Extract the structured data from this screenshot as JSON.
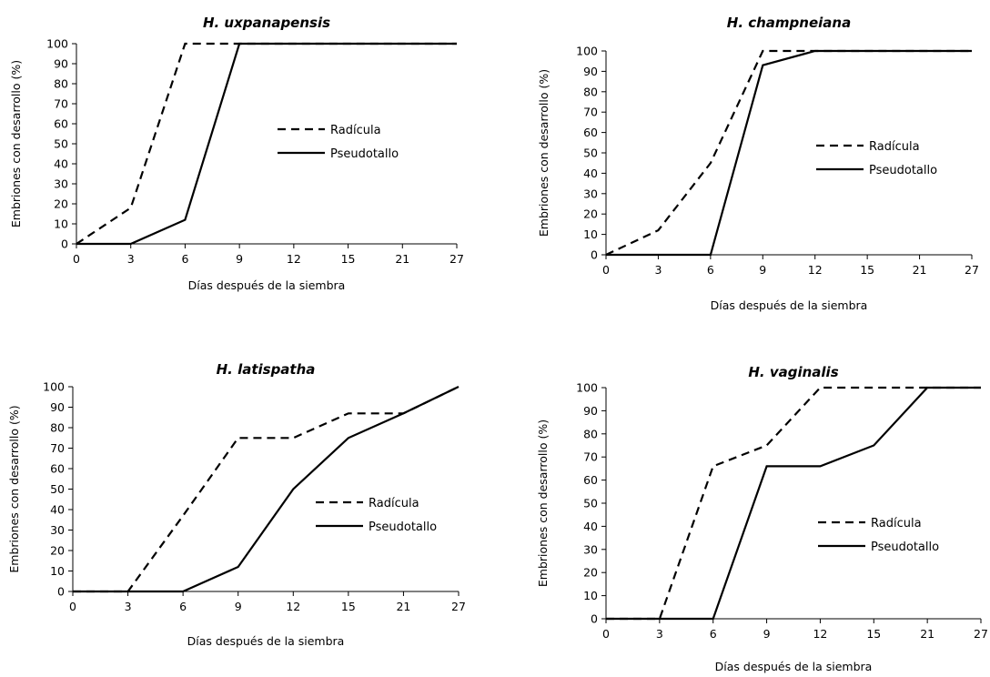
{
  "chart_data": [
    {
      "type": "line",
      "title": "H. uxpanapensis",
      "xlabel": "Días después de la siembra",
      "ylabel": "Embriones con desarrollo (%)",
      "categories": [
        "0",
        "3",
        "6",
        "9",
        "12",
        "15",
        "21",
        "27"
      ],
      "yticks": [
        "0",
        "10",
        "20",
        "30",
        "40",
        "50",
        "60",
        "70",
        "80",
        "90",
        "100"
      ],
      "ylim": [
        0,
        100
      ],
      "legend_position": "center-right",
      "series": [
        {
          "name": "Radícula",
          "style": "dashed",
          "values": [
            0,
            18,
            100,
            100,
            100,
            100,
            100,
            100
          ]
        },
        {
          "name": "Pseudotallo",
          "style": "solid",
          "values": [
            0,
            0,
            12,
            100,
            100,
            100,
            100,
            100
          ]
        }
      ]
    },
    {
      "type": "line",
      "title": "H. champneiana",
      "xlabel": "Días después de la siembra",
      "ylabel": "Embriones con desarrollo (%)",
      "categories": [
        "0",
        "3",
        "6",
        "9",
        "12",
        "15",
        "21",
        "27"
      ],
      "yticks": [
        "0",
        "10",
        "20",
        "30",
        "40",
        "50",
        "60",
        "70",
        "80",
        "90",
        "100"
      ],
      "ylim": [
        0,
        100
      ],
      "legend_position": "center-right",
      "series": [
        {
          "name": "Radícula",
          "style": "dashed",
          "values": [
            0,
            12,
            45,
            100,
            100,
            100,
            100,
            100
          ]
        },
        {
          "name": "Pseudotallo",
          "style": "solid",
          "values": [
            0,
            0,
            0,
            93,
            100,
            100,
            100,
            100
          ]
        }
      ]
    },
    {
      "type": "line",
      "title": "H. latispatha",
      "xlabel": "Días después de la siembra",
      "ylabel": "Embriones con desarrollo (%)",
      "categories": [
        "0",
        "3",
        "6",
        "9",
        "12",
        "15",
        "21",
        "27"
      ],
      "yticks": [
        "0",
        "10",
        "20",
        "30",
        "40",
        "50",
        "60",
        "70",
        "80",
        "90",
        "100"
      ],
      "ylim": [
        0,
        100
      ],
      "legend_position": "center-right",
      "series": [
        {
          "name": "Radícula",
          "style": "dashed",
          "values": [
            0,
            0,
            37,
            75,
            75,
            87,
            87,
            100
          ]
        },
        {
          "name": "Pseudotallo",
          "style": "solid",
          "values": [
            0,
            0,
            0,
            12,
            50,
            75,
            87,
            100
          ]
        }
      ]
    },
    {
      "type": "line",
      "title": "H. vaginalis",
      "xlabel": "Días después de la siembra",
      "ylabel": "Embriones con desarrollo (%)",
      "categories": [
        "0",
        "3",
        "6",
        "9",
        "12",
        "15",
        "21",
        "27"
      ],
      "yticks": [
        "0",
        "10",
        "20",
        "30",
        "40",
        "50",
        "60",
        "70",
        "80",
        "90",
        "100"
      ],
      "ylim": [
        0,
        100
      ],
      "legend_position": "center-right",
      "series": [
        {
          "name": "Radícula",
          "style": "dashed",
          "values": [
            0,
            0,
            66,
            75,
            100,
            100,
            100,
            100
          ]
        },
        {
          "name": "Pseudotallo",
          "style": "solid",
          "values": [
            0,
            0,
            0,
            66,
            66,
            75,
            100,
            100
          ]
        }
      ]
    }
  ]
}
